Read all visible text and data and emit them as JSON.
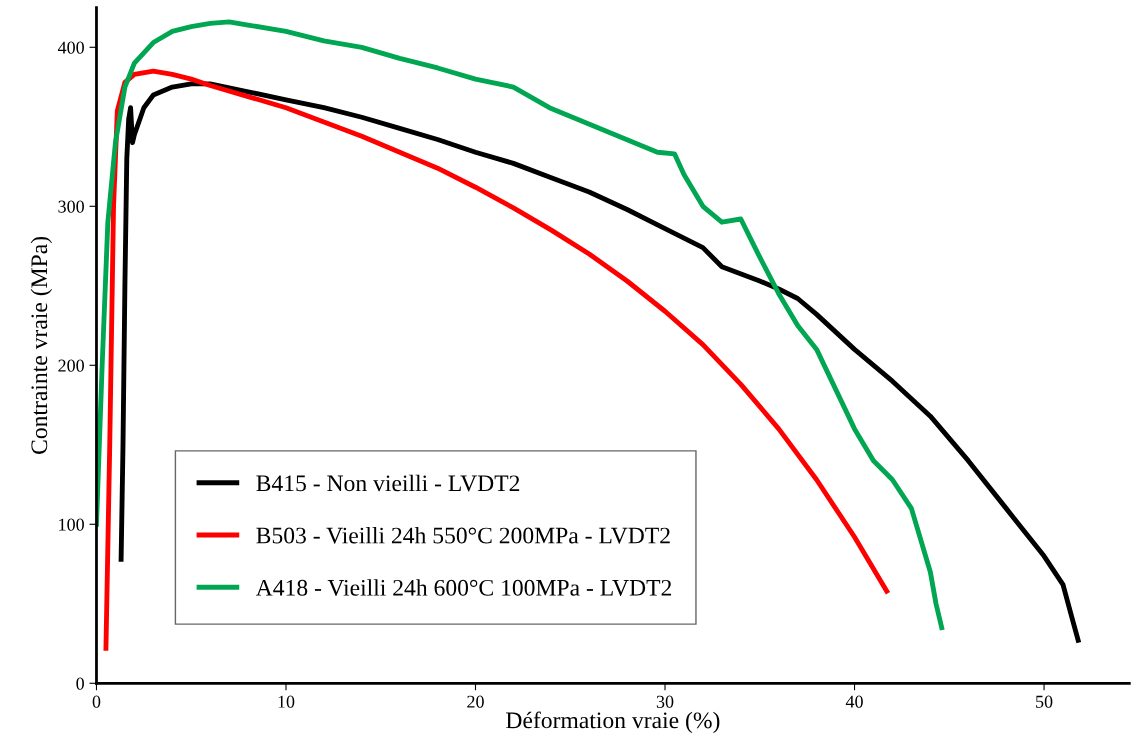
{
  "chart_data": {
    "type": "line",
    "xlabel": "Déformation vraie (%)",
    "ylabel": "Contrainte vraie (MPa)",
    "xlim": [
      0,
      54.5
    ],
    "ylim": [
      0,
      425
    ],
    "xticks": [
      0,
      10,
      20,
      30,
      40,
      50
    ],
    "yticks": [
      0,
      100,
      200,
      300,
      400
    ],
    "grid": false,
    "legend": "bottom left",
    "marker": "none",
    "line_style": "solid",
    "series": [
      {
        "name": "B415 - Non vieilli - LVDT2",
        "color": "#000000",
        "x": [
          1.3,
          1.4,
          1.5,
          1.6,
          1.7,
          1.8,
          1.9,
          2.0,
          2.5,
          3,
          4,
          5,
          6,
          8,
          10,
          12,
          14,
          16,
          18,
          20,
          22,
          24,
          26,
          28,
          30,
          32,
          33,
          35,
          36,
          37,
          38,
          40,
          42,
          44,
          46,
          48,
          50,
          51,
          51.5,
          51.8
        ],
        "values": [
          78,
          150,
          250,
          330,
          355,
          362,
          340,
          345,
          362,
          370,
          375,
          377,
          377,
          372,
          367,
          362,
          356,
          349,
          342,
          334,
          327,
          318,
          309,
          298,
          286,
          274,
          262,
          253,
          248,
          242,
          232,
          210,
          190,
          168,
          140,
          110,
          80,
          62,
          40,
          27
        ]
      },
      {
        "name": "B503 - Vieilli 24h 550°C 200MPa - LVDT2",
        "color": "#ff0000",
        "x": [
          0.5,
          0.7,
          0.9,
          1.1,
          1.5,
          2,
          3,
          4,
          5,
          6,
          8,
          10,
          12,
          14,
          16,
          18,
          20,
          22,
          24,
          26,
          28,
          30,
          32,
          34,
          36,
          38,
          40,
          41.7
        ],
        "values": [
          22,
          150,
          300,
          360,
          378,
          383,
          385,
          383,
          380,
          376,
          369,
          362,
          353,
          344,
          334,
          324,
          312,
          299,
          285,
          270,
          253,
          234,
          213,
          188,
          160,
          128,
          92,
          58
        ]
      },
      {
        "name": "A418 - Vieilli 24h 600°C 100MPa - LVDT2",
        "color": "#00a651",
        "x": [
          0,
          0.3,
          0.6,
          1,
          1.5,
          2,
          3,
          4,
          5,
          6,
          7,
          8,
          10,
          12,
          14,
          16,
          18,
          20,
          22,
          23.9,
          29.6,
          30.5,
          31,
          32,
          33,
          34,
          34.5,
          35,
          36,
          37,
          38,
          39,
          40,
          41,
          42,
          43,
          44,
          44.3,
          44.6
        ],
        "values": [
          100,
          200,
          290,
          340,
          375,
          390,
          403,
          410,
          413,
          415,
          416,
          414,
          410,
          404,
          400,
          393,
          387,
          380,
          375,
          362,
          334,
          333,
          320,
          300,
          290,
          292,
          280,
          268,
          245,
          225,
          210,
          185,
          160,
          140,
          128,
          110,
          70,
          50,
          35
        ]
      }
    ]
  }
}
